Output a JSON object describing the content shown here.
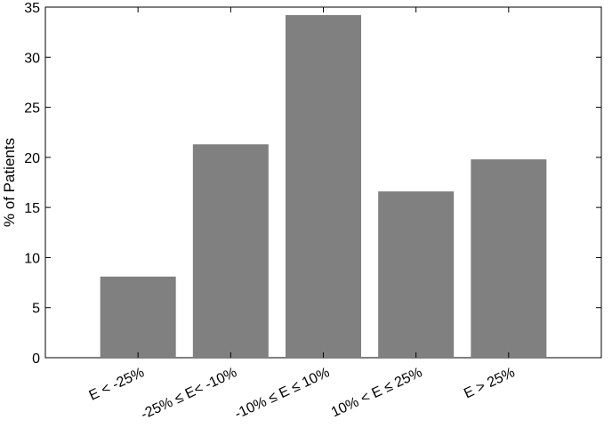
{
  "chart_data": {
    "type": "bar",
    "title": "",
    "xlabel": "",
    "ylabel": "% of Patients",
    "categories": [
      "E < -25%",
      "-25% ≤ E< -10%",
      "-10% ≤ E ≤ 10%",
      "10% < E ≤ 25%",
      "E > 25%"
    ],
    "values": [
      8.1,
      21.3,
      34.2,
      16.6,
      19.8
    ],
    "ylim": [
      0,
      35
    ],
    "yticks": [
      0,
      5,
      10,
      15,
      20,
      25,
      30,
      35
    ],
    "bar_color": "#808080",
    "grid": false,
    "legend": "none"
  }
}
